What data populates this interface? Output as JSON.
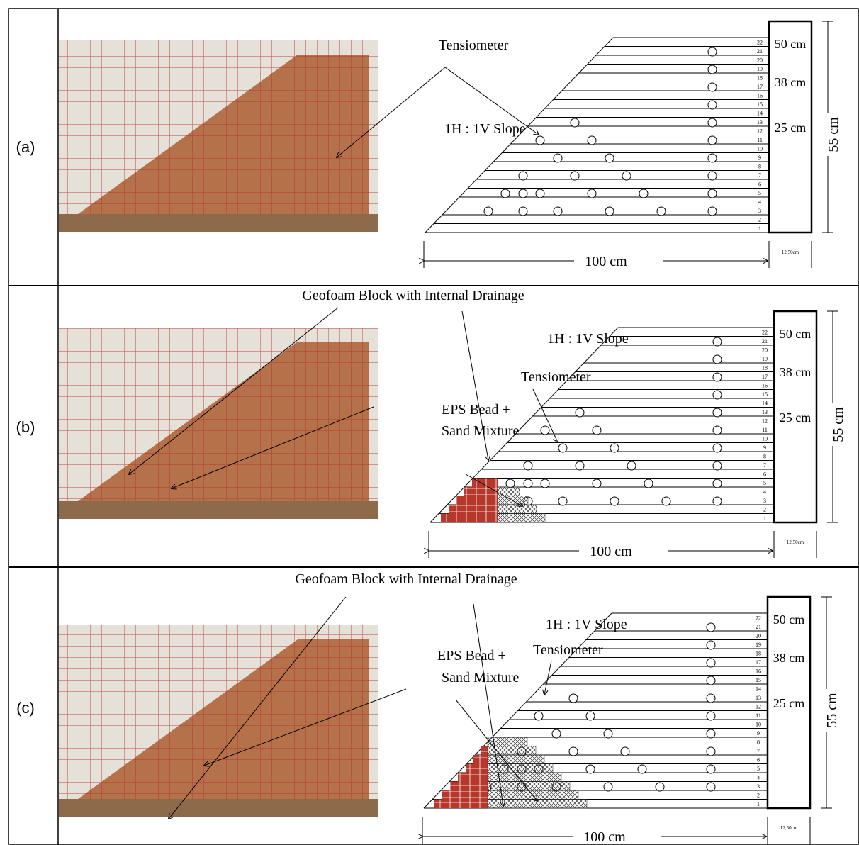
{
  "panels": [
    {
      "label": "(a)",
      "tensiometer": "Tensiometer",
      "slope": "1H : 1V Slope",
      "dims": [
        "50 cm",
        "38 cm",
        "25 cm"
      ],
      "height": "55 cm",
      "length": "100 cm",
      "wall_width": "12,50cm",
      "layers": [
        "1",
        "2",
        "3",
        "4",
        "5",
        "6",
        "7",
        "8",
        "9",
        "10",
        "11",
        "12",
        "13",
        "14",
        "15",
        "16",
        "17",
        "18",
        "19",
        "20",
        "21",
        "22"
      ]
    },
    {
      "label": "(b)",
      "geofoam": "Geofoam Block with Internal Drainage",
      "slope": "1H : 1V Slope",
      "tensiometer": "Tensiometer",
      "eps": [
        "EPS Bead +",
        "Sand Mixture"
      ],
      "dims": [
        "50 cm",
        "38 cm",
        "25 cm"
      ],
      "height": "55 cm",
      "length": "100 cm",
      "wall_width": "12,50cm",
      "layers": [
        "1",
        "2",
        "3",
        "4",
        "5",
        "6",
        "7",
        "8",
        "9",
        "10",
        "11",
        "12",
        "13",
        "14",
        "15",
        "16",
        "17",
        "18",
        "19",
        "20",
        "21",
        "22"
      ]
    },
    {
      "label": "(c)",
      "geofoam": "Geofoam Block with Internal Drainage",
      "slope": "1H : 1V Slope",
      "tensiometer": "Tensiometer",
      "eps": [
        "EPS Bead +",
        "Sand Mixture"
      ],
      "dims": [
        "50 cm",
        "38 cm",
        "25 cm"
      ],
      "height": "55 cm",
      "length": "100 cm",
      "wall_width": "12,50cm",
      "layers": [
        "1",
        "2",
        "3",
        "4",
        "5",
        "6",
        "7",
        "8",
        "9",
        "10",
        "11",
        "12",
        "13",
        "14",
        "15",
        "16",
        "17",
        "18",
        "19",
        "20",
        "21",
        "22"
      ]
    }
  ]
}
